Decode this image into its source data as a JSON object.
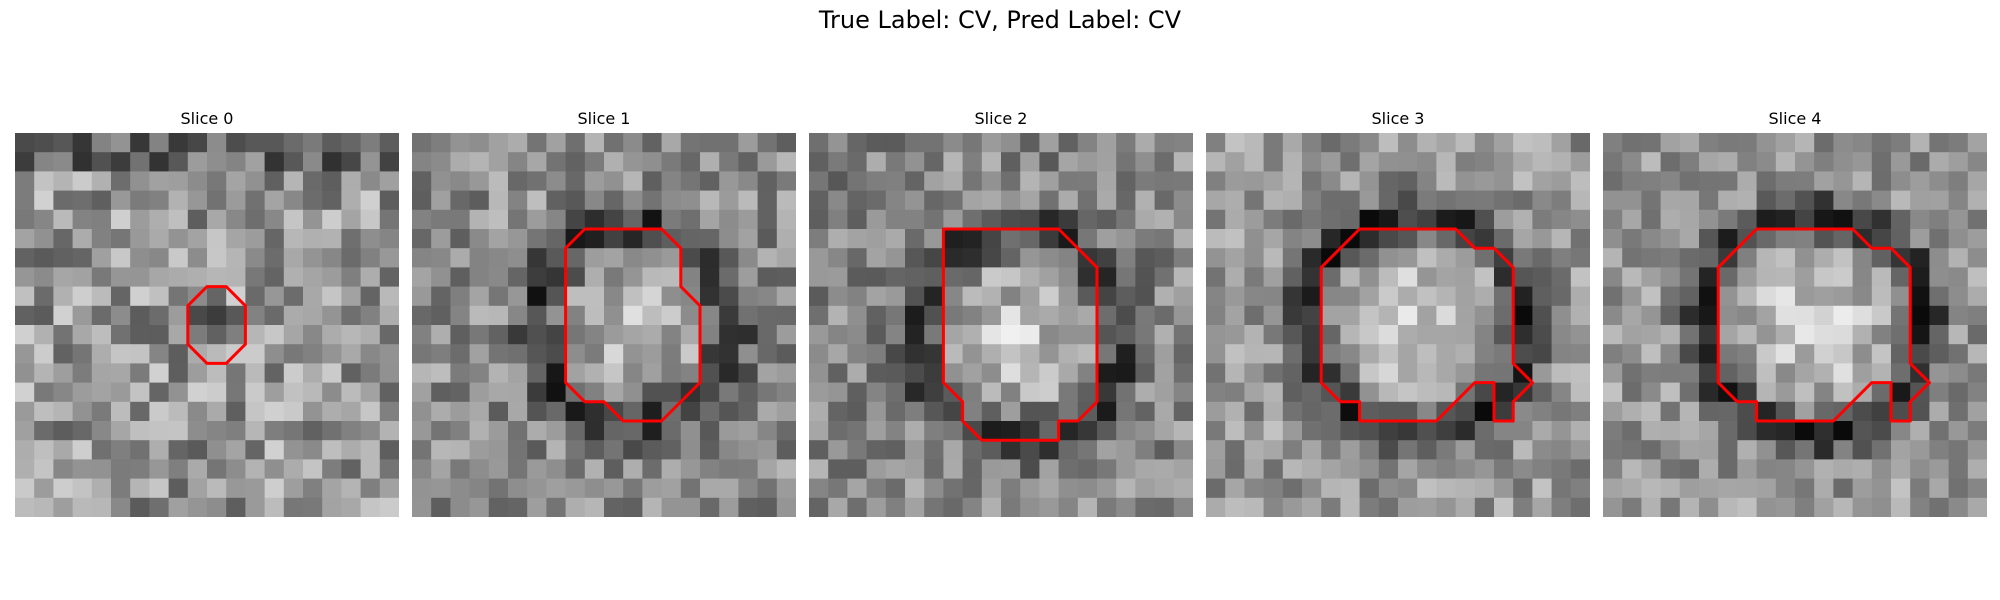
{
  "figure": {
    "title": "True Label: CV, Pred Label: CV"
  },
  "panels": [
    {
      "label": "Slice 0",
      "contour": [
        [
          9,
          9
        ],
        [
          10,
          8
        ],
        [
          11,
          8
        ],
        [
          12,
          9
        ],
        [
          12,
          11
        ],
        [
          11,
          12
        ],
        [
          10,
          12
        ],
        [
          9,
          11
        ]
      ]
    },
    {
      "label": "Slice 1",
      "contour": [
        [
          8,
          6
        ],
        [
          9,
          5
        ],
        [
          13,
          5
        ],
        [
          14,
          6
        ],
        [
          14,
          8
        ],
        [
          15,
          9
        ],
        [
          15,
          13
        ],
        [
          13,
          15
        ],
        [
          12,
          15
        ],
        [
          11,
          15
        ],
        [
          10,
          14
        ],
        [
          9,
          14
        ],
        [
          8,
          13
        ]
      ]
    },
    {
      "label": "Slice 2",
      "contour": [
        [
          7,
          5
        ],
        [
          8,
          5
        ],
        [
          13,
          5
        ],
        [
          15,
          7
        ],
        [
          15,
          14
        ],
        [
          14,
          15
        ],
        [
          13,
          15
        ],
        [
          13,
          16
        ],
        [
          9,
          16
        ],
        [
          8,
          15
        ],
        [
          8,
          14
        ],
        [
          7,
          13
        ],
        [
          7,
          12
        ],
        [
          7,
          9
        ]
      ]
    },
    {
      "label": "Slice 3",
      "contour": [
        [
          6,
          7
        ],
        [
          7,
          6
        ],
        [
          8,
          5
        ],
        [
          13,
          5
        ],
        [
          14,
          6
        ],
        [
          15,
          6
        ],
        [
          16,
          7
        ],
        [
          16,
          8
        ],
        [
          16,
          11
        ],
        [
          16,
          12
        ],
        [
          17,
          13
        ],
        [
          16,
          14
        ],
        [
          16,
          15
        ],
        [
          15,
          15
        ],
        [
          15,
          13
        ],
        [
          14,
          13
        ],
        [
          13,
          14
        ],
        [
          12,
          15
        ],
        [
          8,
          15
        ],
        [
          8,
          14
        ],
        [
          7,
          14
        ],
        [
          6,
          13
        ],
        [
          6,
          12
        ],
        [
          6,
          9
        ]
      ]
    },
    {
      "label": "Slice 4",
      "contour": [
        [
          6,
          7
        ],
        [
          7,
          6
        ],
        [
          8,
          5
        ],
        [
          13,
          5
        ],
        [
          14,
          6
        ],
        [
          15,
          6
        ],
        [
          16,
          7
        ],
        [
          16,
          8
        ],
        [
          16,
          11
        ],
        [
          16,
          12
        ],
        [
          17,
          13
        ],
        [
          16,
          14
        ],
        [
          16,
          15
        ],
        [
          15,
          15
        ],
        [
          15,
          13
        ],
        [
          14,
          13
        ],
        [
          13,
          14
        ],
        [
          12,
          15
        ],
        [
          8,
          15
        ],
        [
          8,
          14
        ],
        [
          7,
          14
        ],
        [
          6,
          13
        ],
        [
          6,
          12
        ],
        [
          6,
          9
        ]
      ]
    }
  ],
  "colors": {
    "contour": "#ff0000"
  }
}
